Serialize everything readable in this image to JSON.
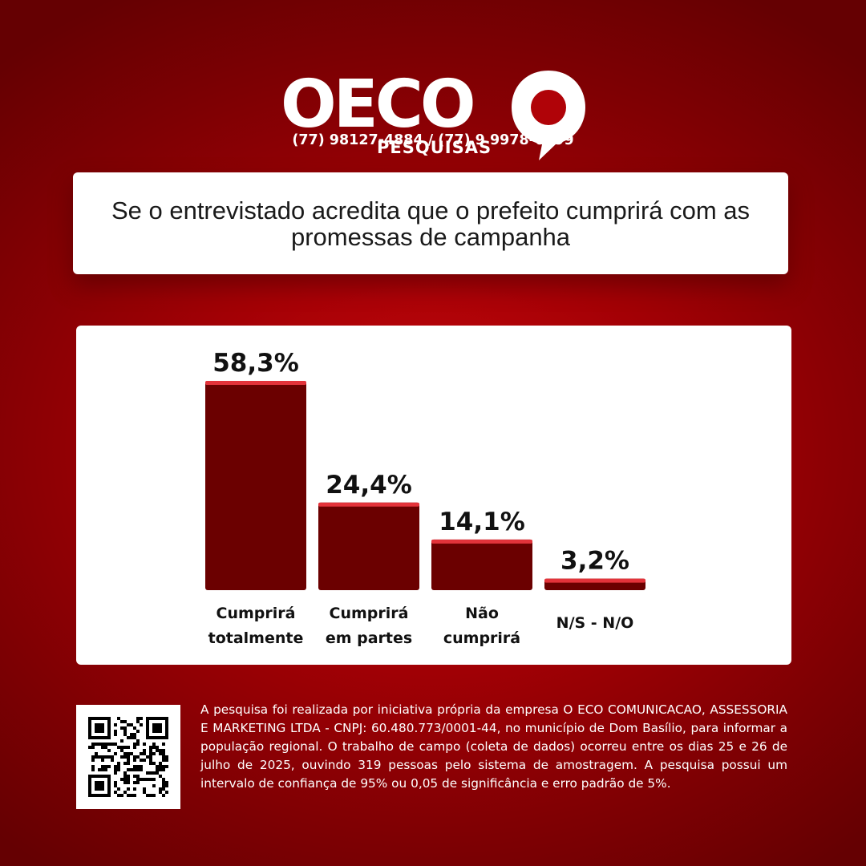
{
  "brand": {
    "logo_text": "OECO",
    "logo_sub": "PESQUISAS",
    "phone": "(77) 98127-4884 / (77) 9 9978-6999"
  },
  "question": {
    "text": "Se o entrevistado acredita que o prefeito cumprirá com as promessas de campanha"
  },
  "colors": {
    "bar": "#6b0000",
    "bar_top": "#e3333a",
    "background": "#a30005"
  },
  "chart_data": {
    "type": "bar",
    "categories": [
      [
        "Cumprirá",
        "totalmente"
      ],
      [
        "Cumprirá",
        "em partes"
      ],
      [
        "Não",
        "cumprirá"
      ],
      [
        "N/S - N/O"
      ]
    ],
    "values": [
      58.3,
      24.4,
      14.1,
      3.2
    ],
    "value_labels": [
      "58,3%",
      "24,4%",
      "14,1%",
      "3,2%"
    ],
    "ylim": [
      0,
      58.3
    ],
    "grid": false
  },
  "footer": {
    "qr_icon": "qr-code-icon",
    "disclaimer": "A pesquisa foi realizada por iniciativa própria da empresa O ECO COMUNICACAO, ASSESSORIA E MARKETING LTDA - CNPJ: 60.480.773/0001-44, no município de Dom Basílio, para informar a população regional. O trabalho de campo (coleta de dados) ocorreu entre os dias 25 e 26 de julho de 2025, ouvindo 319 pessoas pelo sistema de amostragem. A pesquisa possui um intervalo de confiança de 95% ou 0,05 de significância e erro padrão de 5%."
  }
}
